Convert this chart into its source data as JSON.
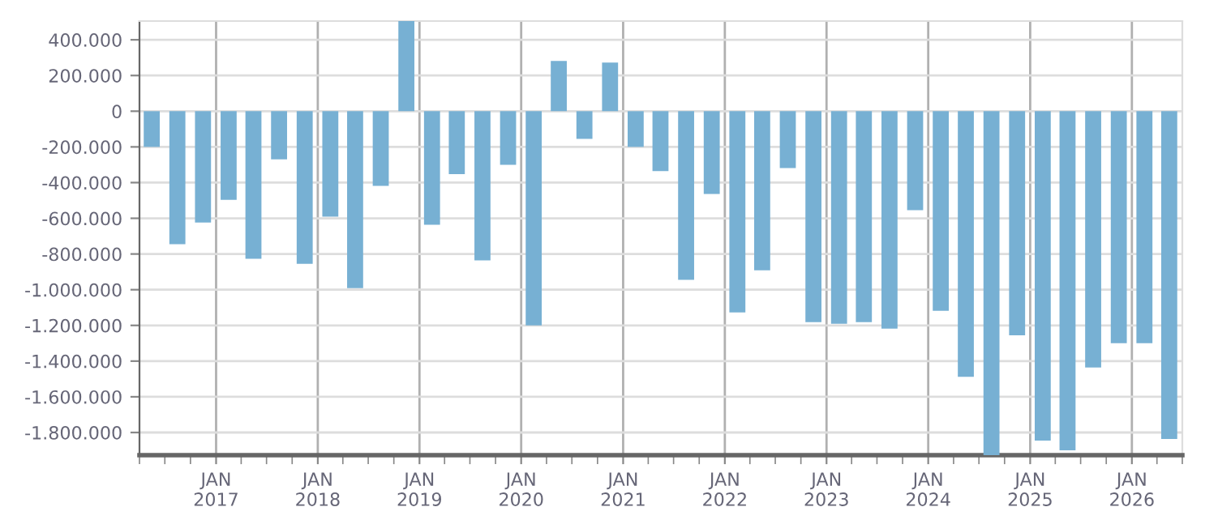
{
  "chart_data": {
    "type": "bar",
    "color": "#77b0d3",
    "x": [
      "2016-05-15",
      "2016-08-15",
      "2016-11-15",
      "2017-02-15",
      "2017-05-15",
      "2017-08-15",
      "2017-11-15",
      "2018-02-15",
      "2018-05-15",
      "2018-08-15",
      "2018-11-15",
      "2019-02-15",
      "2019-05-15",
      "2019-08-15",
      "2019-11-15",
      "2020-02-15",
      "2020-05-15",
      "2020-08-15",
      "2020-11-15",
      "2021-02-15",
      "2021-05-15",
      "2021-08-15",
      "2021-11-15",
      "2022-02-15",
      "2022-05-15",
      "2022-08-15",
      "2022-11-15",
      "2023-02-15",
      "2023-05-15",
      "2023-08-15",
      "2023-11-15",
      "2024-02-15",
      "2024-05-15",
      "2024-08-15",
      "2024-11-15",
      "2025-02-15",
      "2025-05-15",
      "2025-08-15",
      "2025-11-15",
      "2026-02-15",
      "2026-05-15"
    ],
    "values": [
      -200000,
      -745000,
      -624000,
      -497000,
      -827000,
      -270000,
      -855000,
      -591000,
      -991000,
      -418000,
      505000,
      -636000,
      -352000,
      -836000,
      -300000,
      -1200000,
      282000,
      -155000,
      273000,
      -200000,
      -336000,
      -945000,
      -464000,
      -1127000,
      -891000,
      -318000,
      -1182000,
      -1191000,
      -1182000,
      -1218000,
      -555000,
      -1118000,
      -1488000,
      -1927000,
      -1255000,
      -1845000,
      -1900000,
      -1436000,
      -1300000,
      -1300000,
      -1836000
    ],
    "xlim": [
      "2016-04-01",
      "2026-07-01"
    ],
    "xticks": [
      {
        "value": "2017-01-01",
        "label": "JAN\n2017"
      },
      {
        "value": "2018-01-01",
        "label": "JAN\n2018"
      },
      {
        "value": "2019-01-01",
        "label": "JAN\n2019"
      },
      {
        "value": "2020-01-01",
        "label": "JAN\n2020"
      },
      {
        "value": "2021-01-01",
        "label": "JAN\n2021"
      },
      {
        "value": "2022-01-01",
        "label": "JAN\n2022"
      },
      {
        "value": "2023-01-01",
        "label": "JAN\n2023"
      },
      {
        "value": "2024-01-01",
        "label": "JAN\n2024"
      },
      {
        "value": "2025-01-01",
        "label": "JAN\n2025"
      },
      {
        "value": "2026-01-01",
        "label": "JAN\n2026"
      }
    ],
    "ylim": [
      -1927000,
      505000
    ],
    "yticks": [
      {
        "value": -1800000,
        "label": "-1.800.000"
      },
      {
        "value": -1600000,
        "label": "-1.600.000"
      },
      {
        "value": -1400000,
        "label": "-1.400.000"
      },
      {
        "value": -1200000,
        "label": "-1.200.000"
      },
      {
        "value": -1000000,
        "label": "-1.000.000"
      },
      {
        "value": -800000,
        "label": "-800.000"
      },
      {
        "value": -600000,
        "label": "-600.000"
      },
      {
        "value": -400000,
        "label": "-400.000"
      },
      {
        "value": -200000,
        "label": "-200.000"
      },
      0,
      {
        "value": 200000,
        "label": "200.000"
      },
      {
        "value": 400000,
        "label": "400.000"
      }
    ],
    "grid": true,
    "legend": false
  }
}
